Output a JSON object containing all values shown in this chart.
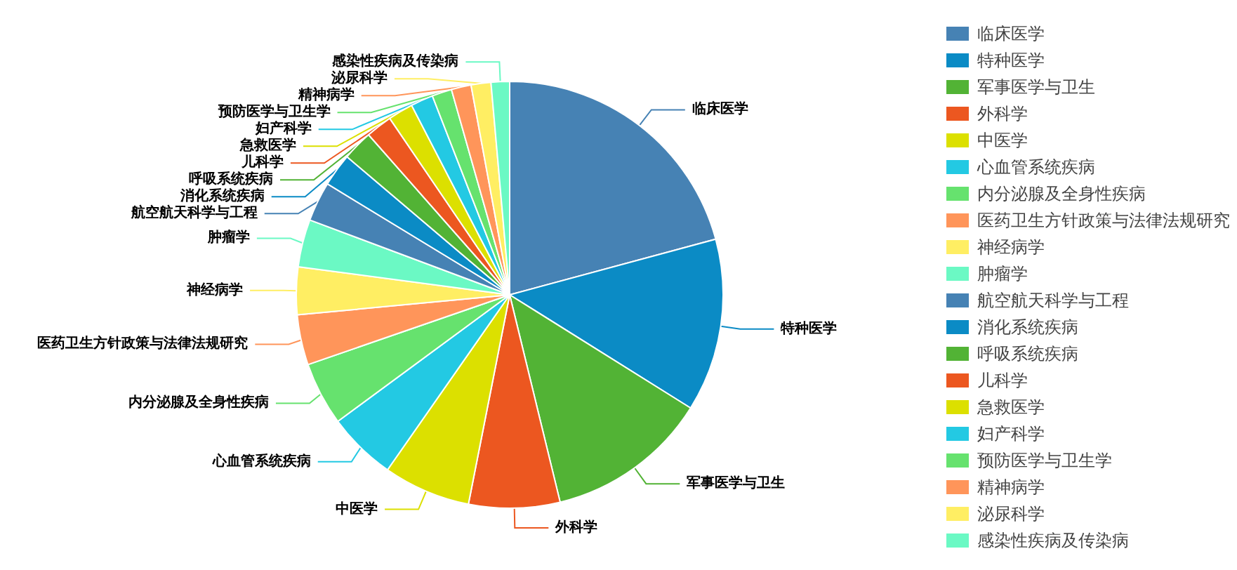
{
  "chart_data": {
    "type": "pie",
    "categories": [
      "临床医学",
      "特种医学",
      "军事医学与卫生",
      "外科学",
      "中医学",
      "心血管系统疾病",
      "内分泌腺及全身性疾病",
      "医药卫生方针政策与法律法规研究",
      "神经病学",
      "肿瘤学",
      "航空航天科学与工程",
      "消化系统疾病",
      "呼吸系统疾病",
      "儿科学",
      "急救医学",
      "妇产科学",
      "预防医学与卫生学",
      "精神病学",
      "泌尿科学",
      "感染性疾病及传染病"
    ],
    "values": [
      20.8,
      13.1,
      12.3,
      6.9,
      6.6,
      5.2,
      4.8,
      3.8,
      3.6,
      3.6,
      3.0,
      2.5,
      2.3,
      2.0,
      1.9,
      1.7,
      1.5,
      1.5,
      1.5,
      1.4
    ],
    "colors": [
      "#4682b4",
      "#0b8bc5",
      "#52b335",
      "#ec5720",
      "#dce000",
      "#23c9e3",
      "#66e26e",
      "#ff955a",
      "#ffee63",
      "#6bf9c4",
      "#4682b4",
      "#0b8bc5",
      "#52b335",
      "#ec5720",
      "#dce000",
      "#23c9e3",
      "#66e26e",
      "#ff955a",
      "#ffee63",
      "#6bf9c4"
    ],
    "legend": "right"
  }
}
